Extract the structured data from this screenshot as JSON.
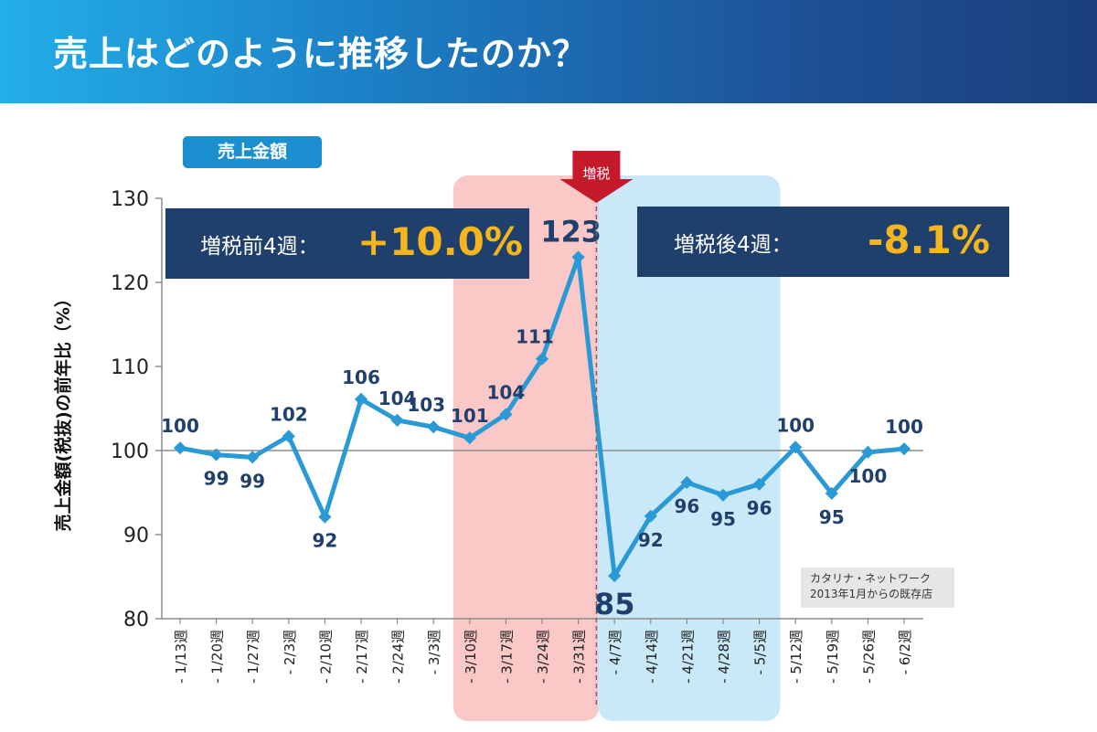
{
  "header": {
    "title": "売上はどのように推移したのか？"
  },
  "badge": {
    "label": "売上金額"
  },
  "summary": {
    "before": {
      "label": "増税前4週：",
      "value": "+10.0%"
    },
    "after": {
      "label": "増税後4週：",
      "value": "-8.1%"
    }
  },
  "marker": {
    "label": "増税"
  },
  "source": {
    "line1": "カタリナ・ネットワーク",
    "line2": "2013年1月からの既存店"
  },
  "chart_data": {
    "type": "line",
    "ylabel": "売上金額(税抜)の前年比（%）",
    "ylim": [
      80,
      130
    ],
    "yticks": [
      80,
      90,
      100,
      110,
      120,
      130
    ],
    "baseline": 100,
    "categories": [
      "- 1/13週",
      "- 1/20週",
      "- 1/27週",
      "- 2/3週",
      "- 2/10週",
      "- 2/17週",
      "- 2/24週",
      "- 3/3週",
      "- 3/10週",
      "- 3/17週",
      "- 3/24週",
      "- 3/31週",
      "- 4/7週",
      "- 4/14週",
      "- 4/21週",
      "- 4/28週",
      "- 5/5週",
      "- 5/12週",
      "- 5/19週",
      "- 5/26週",
      "- 6/2週"
    ],
    "series": [
      {
        "name": "",
        "color": "#2a9ad6",
        "values": [
          100.3,
          99.5,
          99.2,
          101.7,
          92.1,
          106.1,
          103.6,
          102.8,
          101.5,
          104.3,
          110.9,
          123.0,
          85.1,
          92.2,
          96.2,
          94.7,
          96.0,
          100.4,
          94.9,
          99.8,
          100.2
        ],
        "labels": [
          "100",
          "99",
          "99",
          "102",
          "92",
          "106",
          "104",
          "103",
          "101",
          "104",
          "111",
          "123",
          "85",
          "92",
          "96",
          "95",
          "96",
          "100",
          "95",
          "100",
          "100"
        ]
      }
    ],
    "highlights": [
      {
        "name": "before",
        "from": "- 3/10週",
        "to": "- 3/31週",
        "color": "#fbc8c8"
      },
      {
        "name": "after",
        "from": "- 4/7週",
        "to": "- 5/5週",
        "color": "#c9e8f8"
      }
    ]
  }
}
